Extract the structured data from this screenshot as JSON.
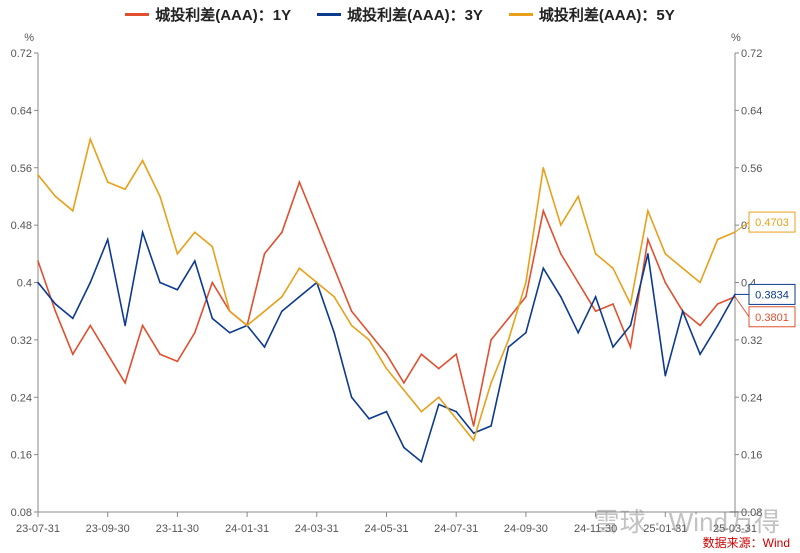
{
  "chart_data": {
    "type": "line",
    "yunit_left": "%",
    "yunit_right": "%",
    "ylim": [
      0.08,
      0.72
    ],
    "yticks": [
      "0.08",
      "0.16",
      "0.24",
      "0.32",
      "0.4",
      "0.48",
      "0.56",
      "0.64",
      "0.72"
    ],
    "xticks": [
      "23-07-31",
      "23-09-30",
      "23-11-30",
      "24-01-31",
      "24-03-31",
      "24-05-31",
      "24-07-31",
      "24-09-30",
      "24-11-30",
      "25-01-31",
      "25-03-31"
    ],
    "x": [
      "23-07-31",
      "23-08-15",
      "23-08-31",
      "23-09-15",
      "23-09-30",
      "23-10-15",
      "23-10-31",
      "23-11-15",
      "23-11-30",
      "23-12-15",
      "23-12-31",
      "24-01-15",
      "24-01-31",
      "24-02-15",
      "24-02-29",
      "24-03-15",
      "24-03-31",
      "24-04-15",
      "24-04-30",
      "24-05-15",
      "24-05-31",
      "24-06-15",
      "24-06-30",
      "24-07-15",
      "24-07-31",
      "24-08-15",
      "24-08-31",
      "24-09-15",
      "24-09-30",
      "24-10-15",
      "24-10-31",
      "24-11-15",
      "24-11-30",
      "24-12-15",
      "24-12-31",
      "25-01-15",
      "25-01-31",
      "25-02-15",
      "25-02-28",
      "25-03-15",
      "25-03-31"
    ],
    "series": [
      {
        "name": "城投利差(AAA)：1Y",
        "color": "#E0502F",
        "end_label": "0.3801",
        "values": [
          0.43,
          0.36,
          0.3,
          0.34,
          0.3,
          0.26,
          0.34,
          0.3,
          0.29,
          0.33,
          0.4,
          0.36,
          0.34,
          0.44,
          0.47,
          0.54,
          0.48,
          0.42,
          0.36,
          0.33,
          0.3,
          0.26,
          0.3,
          0.28,
          0.3,
          0.2,
          0.32,
          0.35,
          0.38,
          0.5,
          0.44,
          0.4,
          0.36,
          0.37,
          0.31,
          0.46,
          0.4,
          0.36,
          0.34,
          0.37,
          0.3801
        ]
      },
      {
        "name": "城投利差(AAA)：3Y",
        "color": "#0C3A8E",
        "end_label": "0.3834",
        "values": [
          0.4,
          0.37,
          0.35,
          0.4,
          0.46,
          0.34,
          0.47,
          0.4,
          0.39,
          0.43,
          0.35,
          0.33,
          0.34,
          0.31,
          0.36,
          0.38,
          0.4,
          0.33,
          0.24,
          0.21,
          0.22,
          0.17,
          0.15,
          0.23,
          0.22,
          0.19,
          0.2,
          0.31,
          0.33,
          0.42,
          0.38,
          0.33,
          0.38,
          0.31,
          0.34,
          0.44,
          0.27,
          0.36,
          0.3,
          0.34,
          0.3834
        ]
      },
      {
        "name": "城投利差(AAA)：5Y",
        "color": "#E8A01A",
        "end_label": "0.4703",
        "values": [
          0.55,
          0.52,
          0.5,
          0.6,
          0.54,
          0.53,
          0.57,
          0.52,
          0.44,
          0.47,
          0.45,
          0.36,
          0.34,
          0.36,
          0.38,
          0.42,
          0.4,
          0.38,
          0.34,
          0.32,
          0.28,
          0.25,
          0.22,
          0.24,
          0.21,
          0.18,
          0.26,
          0.32,
          0.4,
          0.56,
          0.48,
          0.52,
          0.44,
          0.42,
          0.37,
          0.5,
          0.44,
          0.42,
          0.4,
          0.46,
          0.4703
        ]
      }
    ]
  },
  "source": "数据来源：Wind",
  "watermark": "雪球 · Wind万得"
}
